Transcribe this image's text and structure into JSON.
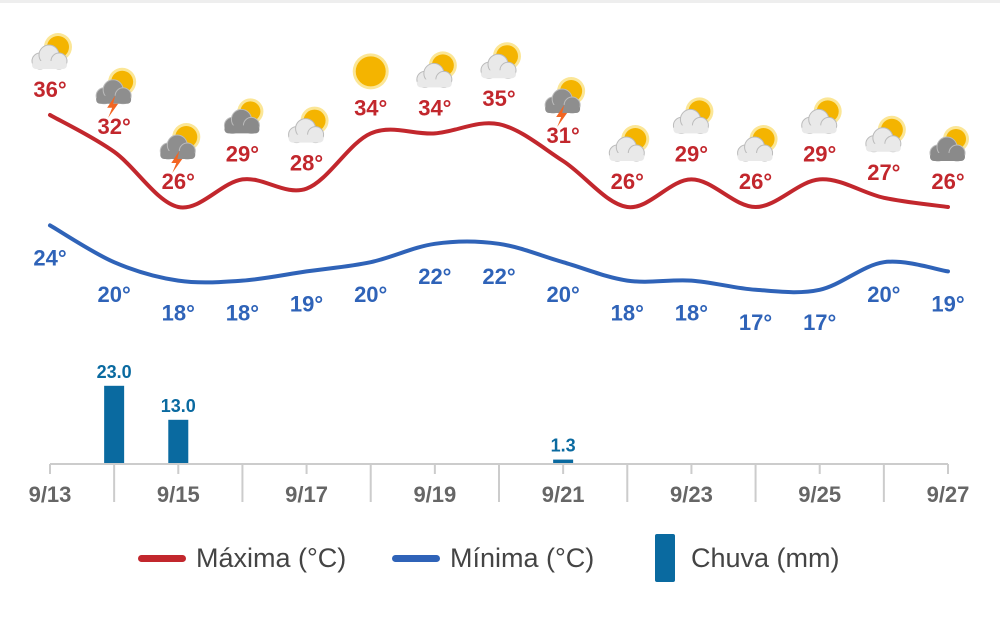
{
  "chart_data": {
    "type": "line",
    "x": [
      "9/13",
      "9/14",
      "9/15",
      "9/16",
      "9/17",
      "9/18",
      "9/19",
      "9/20",
      "9/21",
      "9/22",
      "9/23",
      "9/24",
      "9/25",
      "9/26",
      "9/27"
    ],
    "x_tick_labels": [
      "9/13",
      "9/15",
      "9/17",
      "9/19",
      "9/21",
      "9/23",
      "9/25",
      "9/27"
    ],
    "series": [
      {
        "name": "Máxima (°C)",
        "color": "#c2272d",
        "values": [
          36,
          32,
          26,
          29,
          28,
          34,
          34,
          35,
          31,
          26,
          29,
          26,
          29,
          27,
          26
        ]
      },
      {
        "name": "Mínima (°C)",
        "color": "#2f63b8",
        "values": [
          24,
          20,
          18,
          18,
          19,
          20,
          22,
          22,
          20,
          18,
          18,
          17,
          17,
          20,
          19
        ]
      },
      {
        "name": "Chuva (mm)",
        "type": "bar",
        "color": "#0a6aa0",
        "values": [
          0,
          23.0,
          13.0,
          0,
          0,
          0,
          0,
          0,
          1.3,
          0,
          0,
          0,
          0,
          0,
          0
        ]
      }
    ],
    "temp_label_suffix": "°",
    "rain_labels": [
      "",
      "23.0",
      "13.0",
      "",
      "",
      "",
      "",
      "",
      "1.3",
      "",
      "",
      "",
      "",
      "",
      ""
    ],
    "weather_icons": [
      "partly-cloudy",
      "thunderstorm",
      "thunderstorm",
      "cloudy",
      "partly-cloudy",
      "sunny",
      "partly-cloudy",
      "partly-cloudy",
      "thunderstorm",
      "partly-cloudy",
      "partly-cloudy",
      "partly-cloudy",
      "partly-cloudy",
      "partly-cloudy",
      "cloudy"
    ],
    "legend_position": "bottom",
    "grid": false
  },
  "legend": {
    "max_label": "Máxima (°C)",
    "min_label": "Mínima (°C)",
    "rain_label": "Chuva (mm)"
  }
}
